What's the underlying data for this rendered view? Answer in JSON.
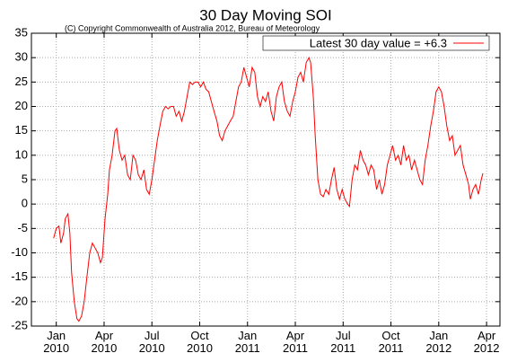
{
  "chart_data": {
    "type": "line",
    "title": "30 Day Moving SOI",
    "subtitle": "(C) Copyright Commonwealth of Australia 2012, Bureau of Meteorology",
    "x": [
      2009.986,
      2010.0,
      2010.014,
      2010.024,
      2010.038,
      2010.047,
      2010.061,
      2010.071,
      2010.08,
      2010.094,
      2010.108,
      2010.118,
      2010.132,
      2010.146,
      2010.16,
      2010.175,
      2010.189,
      2010.203,
      2010.217,
      2010.231,
      2010.241,
      2010.255,
      2010.269,
      2010.278,
      2010.292,
      2010.307,
      2010.316,
      2010.33,
      2010.344,
      2010.358,
      2010.373,
      2010.387,
      2010.401,
      2010.415,
      2010.429,
      2010.443,
      2010.458,
      2010.472,
      2010.486,
      2010.5,
      2010.514,
      2010.528,
      2010.542,
      2010.557,
      2010.571,
      2010.585,
      2010.599,
      2010.613,
      2010.627,
      2010.642,
      2010.656,
      2010.67,
      2010.684,
      2010.698,
      2010.712,
      2010.726,
      2010.741,
      2010.755,
      2010.769,
      2010.783,
      2010.797,
      2010.811,
      2010.825,
      2010.84,
      2010.854,
      2010.868,
      2010.882,
      2010.896,
      2010.91,
      2010.925,
      2010.939,
      2010.953,
      2010.967,
      2010.981,
      2010.995,
      2011.009,
      2011.024,
      2011.038,
      2011.052,
      2011.066,
      2011.08,
      2011.094,
      2011.108,
      2011.123,
      2011.137,
      2011.151,
      2011.165,
      2011.179,
      2011.193,
      2011.208,
      2011.222,
      2011.236,
      2011.25,
      2011.264,
      2011.278,
      2011.292,
      2011.307,
      2011.321,
      2011.33,
      2011.344,
      2011.354,
      2011.368,
      2011.382,
      2011.396,
      2011.41,
      2011.425,
      2011.439,
      2011.453,
      2011.467,
      2011.481,
      2011.495,
      2011.509,
      2011.524,
      2011.533,
      2011.547,
      2011.561,
      2011.575,
      2011.59,
      2011.604,
      2011.618,
      2011.632,
      2011.646,
      2011.66,
      2011.675,
      2011.689,
      2011.703,
      2011.717,
      2011.731,
      2011.745,
      2011.759,
      2011.774,
      2011.788,
      2011.802,
      2011.816,
      2011.83,
      2011.844,
      2011.858,
      2011.873,
      2011.887,
      2011.901,
      2011.915,
      2011.929,
      2011.943,
      2011.958,
      2011.972,
      2011.986,
      2012.0,
      2012.014,
      2012.028,
      2012.042,
      2012.057,
      2012.071,
      2012.085,
      2012.099,
      2012.113,
      2012.127,
      2012.142,
      2012.156,
      2012.165,
      2012.179,
      2012.193,
      2012.208,
      2012.222,
      2012.231
    ],
    "series": [
      {
        "name": "Latest 30 day value = +6.3",
        "color": "#ff0000",
        "values": [
          -7,
          -5,
          -4.5,
          -8,
          -6,
          -3,
          -2,
          -6,
          -14,
          -20,
          -23.5,
          -24,
          -23,
          -20,
          -15,
          -10,
          -8,
          -9,
          -10,
          -12,
          -11,
          -3,
          2,
          7,
          10,
          15,
          15.5,
          11,
          9,
          10,
          6,
          5,
          10,
          9,
          6,
          5,
          7,
          3,
          2,
          5,
          9,
          13,
          16,
          19,
          20,
          19.5,
          20,
          20,
          18,
          19,
          17,
          19,
          22,
          25,
          24.5,
          25,
          25,
          24,
          25,
          23.5,
          23,
          21,
          19,
          17,
          14,
          13,
          15,
          16,
          17,
          18,
          21,
          24,
          25,
          28,
          26,
          24,
          28,
          27,
          22,
          20,
          22,
          21,
          23,
          19,
          17,
          22,
          24,
          25,
          21,
          19,
          18,
          21,
          23,
          26,
          27,
          25,
          29,
          30,
          29,
          22,
          14,
          5,
          2,
          1.5,
          3,
          2,
          5,
          7.5,
          3,
          1,
          3,
          1,
          0,
          -0.5,
          5,
          8,
          7,
          11,
          9,
          8,
          6,
          8,
          7,
          3,
          5,
          2,
          4,
          8,
          10,
          12,
          9,
          10,
          8,
          12,
          9,
          10,
          7,
          9,
          7,
          5,
          4,
          9,
          12,
          16,
          19,
          23,
          24,
          23,
          20,
          16,
          13,
          14,
          10,
          11,
          12,
          8,
          6,
          4,
          1,
          3,
          4,
          2,
          5,
          6.3
        ]
      }
    ],
    "xlim": [
      2009.87,
      2012.32
    ],
    "xticks": [
      {
        "value": 2010.0,
        "label": "Jan\n2010"
      },
      {
        "value": 2010.25,
        "label": "Apr\n2010"
      },
      {
        "value": 2010.5,
        "label": "Jul\n2010"
      },
      {
        "value": 2010.75,
        "label": "Oct\n2010"
      },
      {
        "value": 2011.0,
        "label": "Jan\n2011"
      },
      {
        "value": 2011.25,
        "label": "Apr\n2011"
      },
      {
        "value": 2011.5,
        "label": "Jul\n2011"
      },
      {
        "value": 2011.75,
        "label": "Oct\n2011"
      },
      {
        "value": 2012.0,
        "label": "Jan\n2012"
      },
      {
        "value": 2012.25,
        "label": "Apr\n2012"
      }
    ],
    "ylim": [
      -25,
      35
    ],
    "yticks": [
      -25,
      -20,
      -15,
      -10,
      -5,
      0,
      5,
      10,
      15,
      20,
      25,
      30,
      35
    ],
    "grid": true,
    "legend": "upper right"
  }
}
